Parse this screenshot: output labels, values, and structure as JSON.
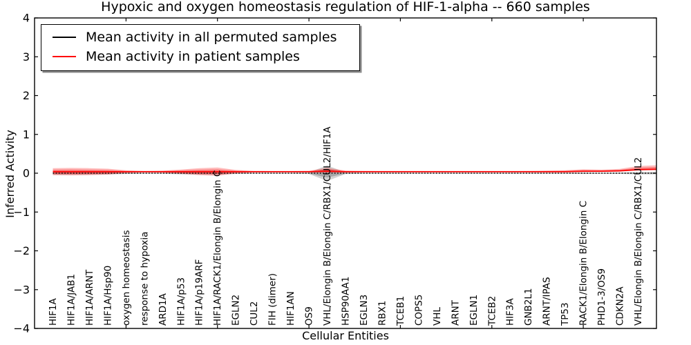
{
  "figure": {
    "background": "#ffffff"
  },
  "chart_data": {
    "type": "violin",
    "title": "Hypoxic and oxygen homeostasis regulation of HIF-1-alpha -- 660 samples",
    "xlabel": "Cellular Entities",
    "ylabel": "Inferred Activity",
    "ylim": [
      -4,
      4
    ],
    "yticks": [
      4,
      3,
      2,
      1,
      0,
      -1,
      -2,
      -3,
      -4
    ],
    "xtick_slot_positions": [
      5,
      10,
      15,
      20,
      25,
      30
    ],
    "grid": false,
    "legend_position": "upper left",
    "legend": [
      {
        "label": "Mean activity in all permuted samples",
        "color": "#000000",
        "line_style": "solid"
      },
      {
        "label": "Mean activity in patient samples",
        "color": "#ff0000",
        "line_style": "solid"
      }
    ],
    "categories": [
      "HIF1A",
      "HIF1A/JAB1",
      "HIF1A/ARNT",
      "HIF1A/Hsp90",
      "oxygen homeostasis",
      "response to hypoxia",
      "ARD1A",
      "HIF1A/p53",
      "HIF1A/p19ARF",
      "HIF1A/RACK1/Elongin B/Elongin C",
      "EGLN2",
      "CUL2",
      "FIH (dimer)",
      "HIF1AN",
      "OS9",
      "VHL/Elongin B/Elongin C/RBX1/CUL2/HIF1A",
      "HSP90AA1",
      "EGLN3",
      "RBX1",
      "TCEB1",
      "COPS5",
      "VHL",
      "ARNT",
      "EGLN1",
      "TCEB2",
      "HIF3A",
      "GNB2L1",
      "ARNT/IPAS",
      "TP53",
      "RACK1/Elongin B/Elongin C",
      "PHD1-3/OS9",
      "CDKN2A",
      "VHL/Elongin B/Elongin C/RBX1/CUL2"
    ],
    "series": [
      {
        "name": "Mean activity in all permuted samples",
        "color": "#000000",
        "line": "dotted",
        "values": [
          0,
          0,
          0,
          0,
          0,
          0,
          0,
          0,
          0,
          0,
          0,
          0,
          0,
          0,
          0,
          0,
          0,
          0,
          0,
          0,
          0,
          0,
          0,
          0,
          0,
          0,
          0,
          0,
          0,
          0,
          0,
          0,
          0
        ]
      },
      {
        "name": "Mean activity in patient samples",
        "color": "#ff0000",
        "line": "solid",
        "values": [
          0.04,
          0.04,
          0.04,
          0.04,
          0.04,
          0.04,
          0.04,
          0.04,
          0.04,
          0.04,
          0.04,
          0.04,
          0.04,
          0.04,
          0.04,
          0.05,
          0.04,
          0.04,
          0.04,
          0.04,
          0.04,
          0.04,
          0.04,
          0.04,
          0.04,
          0.04,
          0.04,
          0.04,
          0.04,
          0.05,
          0.05,
          0.06,
          0.09
        ]
      }
    ],
    "violins": {
      "patient_halfwidth_up": [
        0.09,
        0.095,
        0.09,
        0.075,
        0.035,
        0.02,
        0.028,
        0.055,
        0.09,
        0.105,
        0.045,
        0.02,
        0.018,
        0.018,
        0.022,
        0.09,
        0.028,
        0.02,
        0.018,
        0.018,
        0.018,
        0.018,
        0.018,
        0.018,
        0.018,
        0.018,
        0.02,
        0.028,
        0.036,
        0.05,
        0.04,
        0.05,
        0.095
      ],
      "patient_halfwidth_down": [
        0.09,
        0.095,
        0.09,
        0.075,
        0.035,
        0.02,
        0.028,
        0.055,
        0.09,
        0.105,
        0.045,
        0.02,
        0.018,
        0.018,
        0.022,
        0.04,
        0.028,
        0.02,
        0.018,
        0.018,
        0.018,
        0.018,
        0.018,
        0.018,
        0.018,
        0.018,
        0.02,
        0.022,
        0.022,
        0.022,
        0.02,
        0.02,
        0.02
      ],
      "permuted_halfwidth": [
        0.045,
        0.045,
        0.04,
        0.035,
        0.02,
        0.015,
        0.015,
        0.03,
        0.04,
        0.045,
        0.02,
        0.015,
        0.015,
        0.015,
        0.02,
        0.2,
        0.022,
        0.015,
        0.015,
        0.015,
        0.015,
        0.015,
        0.015,
        0.015,
        0.015,
        0.015,
        0.015,
        0.015,
        0.015,
        0.02,
        0.015,
        0.018,
        0.03
      ],
      "patient_fill_outer": "rgba(255,30,30,0.30)",
      "patient_fill_inner": "rgba(235,10,10,0.35)",
      "permuted_fill_outer": "rgba(105,105,105,0.30)",
      "permuted_fill_inner": "rgba(90,90,90,0.35)"
    },
    "colors": {
      "spine": "#000000",
      "tick_label": "#000000",
      "patient_line": "#ff0000",
      "permuted_line": "#000000"
    }
  }
}
